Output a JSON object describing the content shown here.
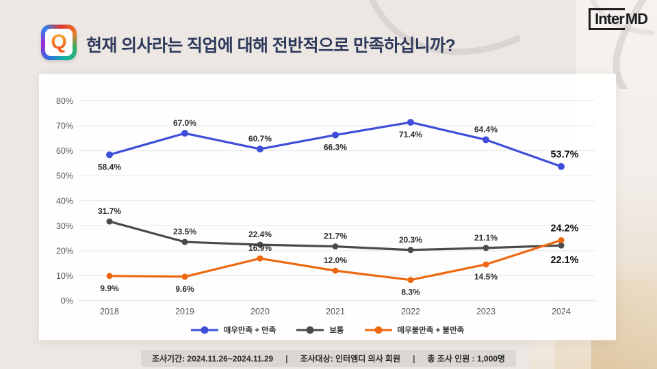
{
  "header": {
    "q_badge": "Q",
    "title": "현재 의사라는 직업에 대해 전반적으로 만족하십니까?",
    "logo_part1": "Inter",
    "logo_part2": "MD"
  },
  "chart_data": {
    "type": "line",
    "title": "",
    "xlabel": "",
    "ylabel": "",
    "categories": [
      "2018",
      "2019",
      "2020",
      "2021",
      "2022",
      "2023",
      "2024"
    ],
    "series": [
      {
        "name": "매우만족 + 만족",
        "color": "#3e4ed8",
        "values": [
          58.4,
          67.0,
          60.7,
          66.3,
          71.4,
          64.4,
          53.7
        ],
        "label_positions": [
          "below",
          "above",
          "above",
          "below",
          "below",
          "above",
          "above"
        ]
      },
      {
        "name": "보통",
        "color": "#4a4a4a",
        "values": [
          31.7,
          23.5,
          22.4,
          21.7,
          20.3,
          21.1,
          22.1
        ],
        "label_positions": [
          "above",
          "above",
          "above",
          "above",
          "above",
          "above",
          "below"
        ]
      },
      {
        "name": "매우불만족 + 불만족",
        "color": "#ee6811",
        "values": [
          9.9,
          9.6,
          16.9,
          12.0,
          8.3,
          14.5,
          24.2
        ],
        "label_positions": [
          "below",
          "below",
          "above",
          "above",
          "below",
          "below",
          "above"
        ]
      }
    ],
    "ylim": [
      0,
      80
    ],
    "ytick_step": 10,
    "ytick_suffix": "%",
    "grid": "horizontal",
    "legend_position": "bottom"
  },
  "footer": {
    "period_label": "조사기간:",
    "period_value": "2024.11.26~2024.11.29",
    "separator": "|",
    "target_label": "조사대상:",
    "target_value": "인터엠디 의사 회원",
    "total_label": "총 조사 인원 :",
    "total_value": "1,000명"
  }
}
